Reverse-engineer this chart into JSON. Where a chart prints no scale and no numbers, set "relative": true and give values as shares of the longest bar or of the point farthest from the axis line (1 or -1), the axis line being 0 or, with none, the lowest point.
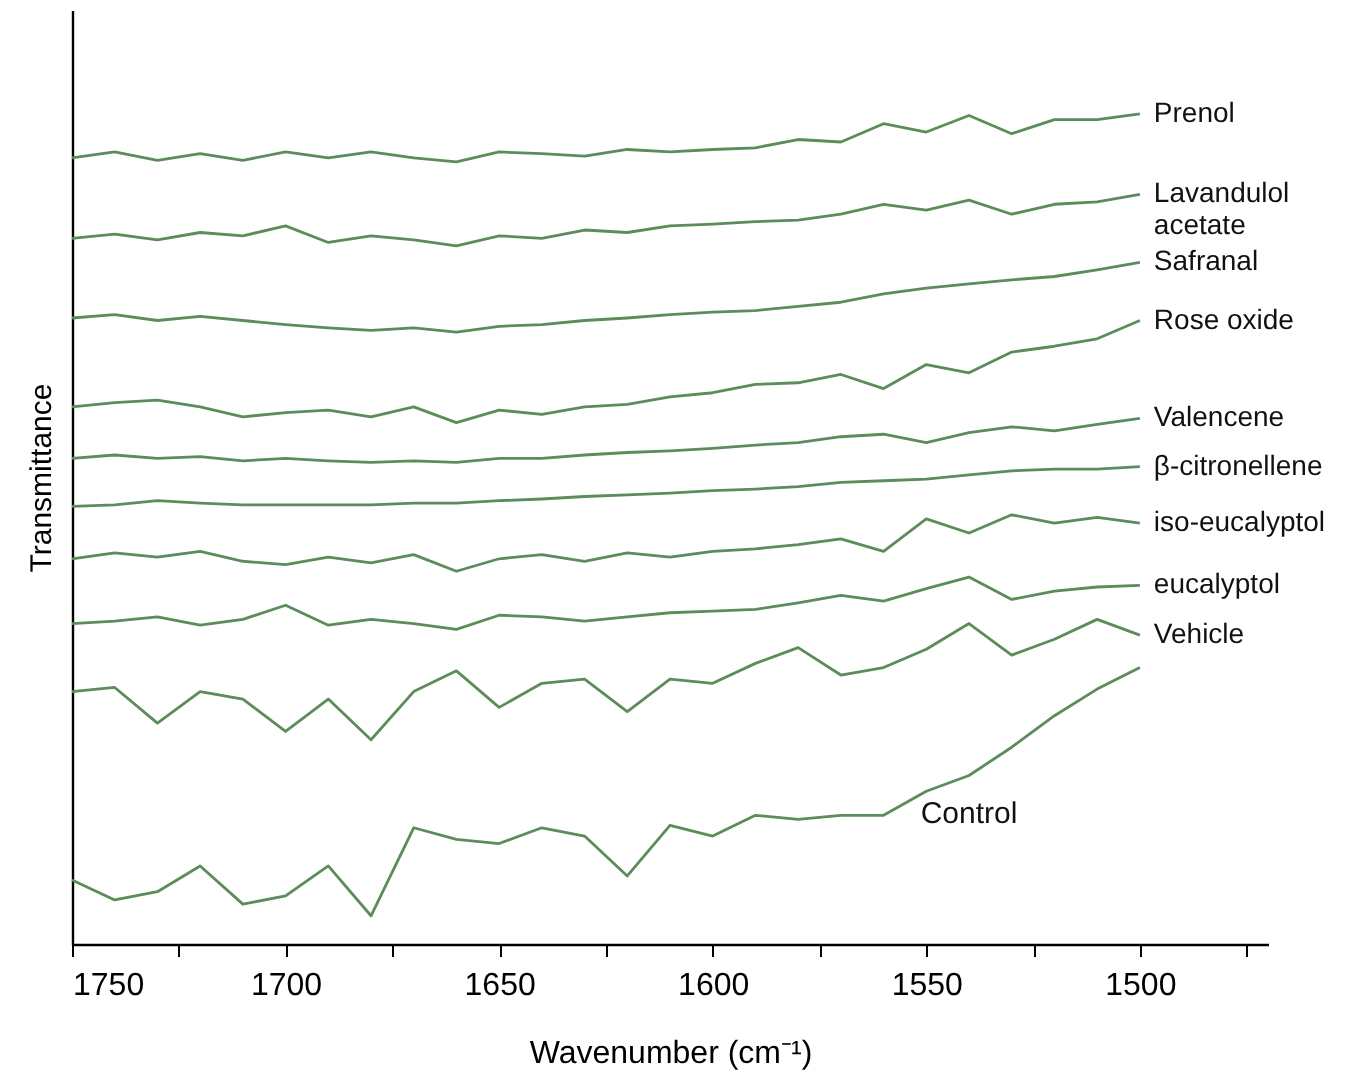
{
  "chart_data": {
    "type": "line",
    "relative": true,
    "xlabel": "Wavenumber (cm⁻¹)",
    "ylabel": "Transmittance",
    "x": [
      1750,
      1740,
      1730,
      1720,
      1710,
      1700,
      1690,
      1680,
      1670,
      1660,
      1650,
      1640,
      1630,
      1620,
      1610,
      1600,
      1590,
      1580,
      1570,
      1560,
      1550,
      1540,
      1530,
      1520,
      1510,
      1500
    ],
    "xlim": [
      1750,
      1470
    ],
    "xticks": [
      1750,
      {
        "value": 1725,
        "label": null
      },
      1700,
      {
        "value": 1675,
        "label": null
      },
      1650,
      {
        "value": 1625,
        "label": null
      },
      1600,
      {
        "value": 1575,
        "label": null
      },
      1550,
      {
        "value": 1525,
        "label": null
      },
      1500,
      {
        "value": 1475,
        "label": null
      }
    ],
    "tick_labels": "x",
    "grid": false,
    "legend": false,
    "marker": "none",
    "line_style": "solid",
    "series": [
      {
        "name": "Prenol",
        "color": "#5b8c5a",
        "values": [
          0.947,
          0.954,
          0.944,
          0.952,
          0.944,
          0.954,
          0.947,
          0.954,
          0.947,
          0.942,
          0.954,
          0.952,
          0.949,
          0.957,
          0.954,
          0.957,
          0.959,
          0.969,
          0.966,
          0.988,
          0.978,
          0.998,
          0.976,
          0.993,
          0.993,
          1.0
        ]
      },
      {
        "name": "Lavandulol acetate",
        "color": "#5b8c5a",
        "values": [
          0.85,
          0.855,
          0.848,
          0.857,
          0.853,
          0.865,
          0.845,
          0.853,
          0.848,
          0.841,
          0.853,
          0.85,
          0.86,
          0.857,
          0.865,
          0.867,
          0.87,
          0.872,
          0.879,
          0.891,
          0.884,
          0.896,
          0.879,
          0.891,
          0.894,
          0.903
        ]
      },
      {
        "name": "Safranal",
        "color": "#5b8c5a",
        "values": [
          0.754,
          0.758,
          0.751,
          0.756,
          0.751,
          0.746,
          0.742,
          0.739,
          0.742,
          0.737,
          0.744,
          0.746,
          0.751,
          0.754,
          0.758,
          0.761,
          0.763,
          0.768,
          0.773,
          0.783,
          0.79,
          0.795,
          0.8,
          0.804,
          0.812,
          0.821
        ]
      },
      {
        "name": "Rose oxide",
        "color": "#5b8c5a",
        "values": [
          0.647,
          0.652,
          0.655,
          0.647,
          0.635,
          0.64,
          0.643,
          0.635,
          0.647,
          0.628,
          0.643,
          0.638,
          0.647,
          0.65,
          0.659,
          0.664,
          0.674,
          0.676,
          0.686,
          0.669,
          0.698,
          0.688,
          0.713,
          0.72,
          0.729,
          0.751
        ]
      },
      {
        "name": "Valencene",
        "color": "#5b8c5a",
        "values": [
          0.585,
          0.589,
          0.585,
          0.587,
          0.582,
          0.585,
          0.582,
          0.58,
          0.582,
          0.58,
          0.585,
          0.585,
          0.589,
          0.592,
          0.594,
          0.597,
          0.601,
          0.604,
          0.611,
          0.614,
          0.604,
          0.616,
          0.623,
          0.618,
          0.626,
          0.633
        ]
      },
      {
        "name": "β-citronellene",
        "color": "#5b8c5a",
        "values": [
          0.527,
          0.529,
          0.534,
          0.531,
          0.529,
          0.529,
          0.529,
          0.529,
          0.531,
          0.531,
          0.534,
          0.536,
          0.539,
          0.541,
          0.543,
          0.546,
          0.548,
          0.551,
          0.556,
          0.558,
          0.56,
          0.565,
          0.57,
          0.572,
          0.572,
          0.575
        ]
      },
      {
        "name": "iso-eucalyptol",
        "color": "#5b8c5a",
        "values": [
          0.464,
          0.471,
          0.466,
          0.473,
          0.461,
          0.457,
          0.466,
          0.459,
          0.469,
          0.449,
          0.464,
          0.469,
          0.461,
          0.471,
          0.466,
          0.473,
          0.476,
          0.481,
          0.488,
          0.473,
          0.512,
          0.495,
          0.517,
          0.507,
          0.514,
          0.507
        ]
      },
      {
        "name": "eucalyptol",
        "color": "#5b8c5a",
        "values": [
          0.386,
          0.389,
          0.394,
          0.384,
          0.391,
          0.408,
          0.384,
          0.391,
          0.386,
          0.379,
          0.396,
          0.394,
          0.389,
          0.394,
          0.399,
          0.401,
          0.403,
          0.411,
          0.42,
          0.413,
          0.428,
          0.442,
          0.415,
          0.425,
          0.43,
          0.432
        ]
      },
      {
        "name": "Vehicle",
        "color": "#5b8c5a",
        "values": [
          0.304,
          0.309,
          0.266,
          0.304,
          0.295,
          0.256,
          0.295,
          0.246,
          0.304,
          0.329,
          0.285,
          0.314,
          0.319,
          0.28,
          0.319,
          0.314,
          0.338,
          0.357,
          0.324,
          0.333,
          0.355,
          0.386,
          0.348,
          0.367,
          0.391,
          0.372
        ]
      },
      {
        "name": "Control",
        "color": "#5b8c5a",
        "values": [
          0.077,
          0.053,
          0.063,
          0.094,
          0.048,
          0.058,
          0.094,
          0.034,
          0.14,
          0.126,
          0.121,
          0.14,
          0.13,
          0.082,
          0.143,
          0.13,
          0.155,
          0.15,
          0.155,
          0.155,
          0.184,
          0.203,
          0.237,
          0.275,
          0.307,
          0.333
        ]
      }
    ]
  }
}
